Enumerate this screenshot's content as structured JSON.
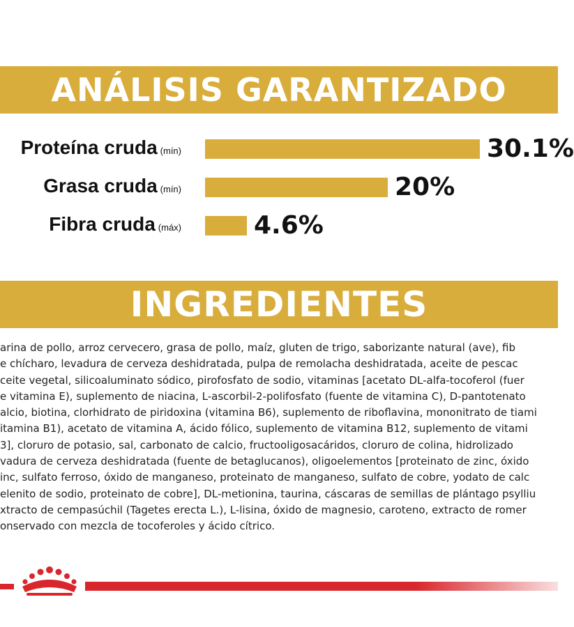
{
  "analysis": {
    "title": "ANÁLISIS GARANTIZADO",
    "items": [
      {
        "name": "Proteína cruda",
        "qualifier": "(mín)",
        "value": "30.1%",
        "fraction": 0.301
      },
      {
        "name": "Grasa cruda",
        "qualifier": "(mín)",
        "value": "20%",
        "fraction": 0.2
      },
      {
        "name": "Fibra cruda",
        "qualifier": "(máx)",
        "value": "4.6%",
        "fraction": 0.046
      }
    ]
  },
  "ingredients": {
    "title": "INGREDIENTES",
    "lines": [
      "arina de pollo, arroz cervecero, grasa de pollo, maíz, gluten de trigo, saborizante natural (ave), fib",
      "e chícharo, levadura de cerveza deshidratada, pulpa de remolacha deshidratada, aceite de pescac",
      "ceite vegetal, silicoaluminato sódico, pirofosfato de sodio, vitaminas [acetato DL-alfa-tocoferol (fuer",
      "e vitamina E), suplemento de niacina, L-ascorbil-2-polifosfato (fuente de vitamina C), D-pantotenato",
      "alcio, biotina, clorhidrato de piridoxina (vitamina B6), suplemento de riboflavina, mononitrato de tiami",
      "itamina B1), acetato de vitamina A, ácido fólico, suplemento de vitamina B12, suplemento de vitami",
      "3], cloruro de potasio, sal, carbonato de calcio, fructooligosacáridos, cloruro de colina, hidrolizado",
      "vadura de cerveza deshidratada (fuente de betaglucanos), oligoelementos [proteinato de zinc, óxido",
      "inc, sulfato ferroso, óxido de manganeso, proteinato de manganeso, sulfato de cobre, yodato de calc",
      "elenito de sodio, proteinato de cobre], DL-metionina, taurina, cáscaras de semillas de plántago psylliu",
      "xtracto de cempasúchil (Tagetes erecta L.), L-lisina, óxido de magnesio, caroteno, extracto de romer",
      "onservado con mezcla de tocoferoles y ácido cítrico."
    ]
  },
  "colors": {
    "gold": "#d9ad3b",
    "red": "#d9262c"
  },
  "icons": {
    "brand": "crown-logo-icon"
  }
}
